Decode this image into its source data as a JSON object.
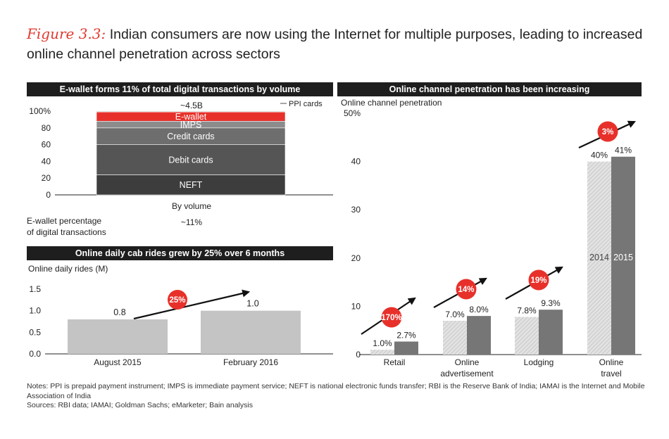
{
  "title": {
    "figure_label": "Figure 3.3:",
    "text": "Indian consumers are now using the Internet for multiple purposes, leading to increased online channel penetration across sectors"
  },
  "chart_data": [
    {
      "type": "bar",
      "stacked": true,
      "title": "E-wallet forms 11% of total digital transactions by volume",
      "categories": [
        "By volume"
      ],
      "series": [
        {
          "name": "NEFT",
          "values": [
            24
          ]
        },
        {
          "name": "Debit cards",
          "values": [
            36
          ]
        },
        {
          "name": "Credit cards",
          "values": [
            20
          ]
        },
        {
          "name": "IMPS",
          "values": [
            8
          ]
        },
        {
          "name": "E-wallet",
          "values": [
            11
          ]
        },
        {
          "name": "PPI cards",
          "values": [
            1
          ]
        }
      ],
      "colors": {
        "NEFT": "#3d3d3d",
        "Debit cards": "#555555",
        "Credit cards": "#6e6e6e",
        "IMPS": "#8c8c8c",
        "E-wallet": "#e8302a",
        "PPI cards": "#c9c9c9"
      },
      "total_label": "~4.5B",
      "ppi_label": "PPI cards",
      "yticks": [
        "100%",
        "80",
        "60",
        "40",
        "20",
        "0"
      ],
      "ylim": [
        0,
        100
      ],
      "footer_label": "E-wallet percentage of digital transactions",
      "footer_value": "~11%"
    },
    {
      "type": "bar",
      "title": "Online daily cab rides grew by 25% over 6 months",
      "ylabel": "Online daily rides (M)",
      "categories": [
        "August 2015",
        "February 2016"
      ],
      "values": [
        0.8,
        1.0
      ],
      "value_labels": [
        "0.8",
        "1.0"
      ],
      "yticks": [
        "1.5",
        "1.0",
        "0.5",
        "0.0"
      ],
      "ylim": [
        0,
        1.5
      ],
      "growth_label": "25%"
    },
    {
      "type": "bar",
      "title": "Online channel penetration has been increasing",
      "ylabel": "Online channel penetration",
      "categories": [
        "Retail",
        "Online advertisement",
        "Lodging",
        "Online travel"
      ],
      "category_lines": [
        [
          "Retail"
        ],
        [
          "Online",
          "advertisement"
        ],
        [
          "Lodging"
        ],
        [
          "Online",
          "travel"
        ]
      ],
      "series": [
        {
          "name": "2014",
          "values": [
            1.0,
            7.0,
            7.8,
            40
          ]
        },
        {
          "name": "2015",
          "values": [
            2.7,
            8.0,
            9.3,
            41
          ]
        }
      ],
      "value_labels": [
        [
          "1.0%",
          "7.0%",
          "7.8%",
          "40%"
        ],
        [
          "2.7%",
          "8.0%",
          "9.3%",
          "41%"
        ]
      ],
      "growth_labels": [
        "170%",
        "14%",
        "19%",
        "3%"
      ],
      "yticks": [
        "50%",
        "40",
        "30",
        "20",
        "10",
        "0"
      ],
      "ylim": [
        0,
        50
      ]
    }
  ],
  "notes": {
    "line1": "Notes: PPI is prepaid payment instrument; IMPS is immediate payment service; NEFT is national electronic funds transfer; RBI is the Reserve Bank of India; IAMAI is the Internet and Mobile Association of India",
    "line2": "Sources: RBI data; IAMAI; Goldman Sachs; eMarketer; Bain analysis"
  }
}
